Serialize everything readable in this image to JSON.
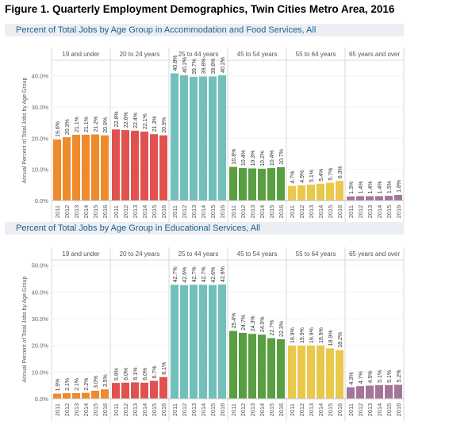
{
  "figure_title": "Figure 1. Quarterly Employment Demographics, Twin Cities Metro Area, 2016",
  "chart_data": [
    {
      "type": "bar",
      "title": "Percent of Total Jobs by Age Group in Accommodation and Food Services, All",
      "ylabel": "Annual Percent of Total Jobs by Age Group",
      "xlabel": "",
      "ylim": [
        0,
        45
      ],
      "yticks": [
        "0.0%",
        "10.0%",
        "20.0%",
        "30.0%",
        "40.0%"
      ],
      "ytick_values": [
        0,
        10,
        20,
        30,
        40
      ],
      "grid": true,
      "categories": [
        "2011",
        "2012",
        "2013",
        "2014",
        "2015",
        "2016"
      ],
      "series": [
        {
          "name": "19 and under",
          "color": "#ed8b2d",
          "values": [
            19.6,
            20.3,
            21.1,
            21.1,
            21.2,
            20.9
          ],
          "labels": [
            "19.6%",
            "20.3%",
            "21.1%",
            "21.1%",
            "21.2%",
            "20.9%"
          ]
        },
        {
          "name": "20 to 24 years",
          "color": "#e0514f",
          "values": [
            22.8,
            22.6,
            22.4,
            22.1,
            21.3,
            20.9
          ],
          "labels": [
            "22.8%",
            "22.6%",
            "22.4%",
            "22.1%",
            "21.3%",
            "20.9%"
          ]
        },
        {
          "name": "25 to 44 years",
          "color": "#72bfbc",
          "values": [
            40.8,
            40.2,
            39.7,
            39.8,
            39.8,
            40.2
          ],
          "labels": [
            "40.8%",
            "40.2%",
            "39.7%",
            "39.8%",
            "39.8%",
            "40.2%"
          ]
        },
        {
          "name": "45 to 54 years",
          "color": "#5a9e42",
          "values": [
            10.8,
            10.4,
            10.3,
            10.2,
            10.4,
            10.7
          ],
          "labels": [
            "10.8%",
            "10.4%",
            "10.3%",
            "10.2%",
            "10.4%",
            "10.7%"
          ]
        },
        {
          "name": "55 to 64 years",
          "color": "#e9c84b",
          "values": [
            4.7,
            4.9,
            5.1,
            5.4,
            5.7,
            6.3
          ],
          "labels": [
            "4.7%",
            "4.9%",
            "5.1%",
            "5.4%",
            "5.7%",
            "6.3%"
          ]
        },
        {
          "name": "65 years and over",
          "color": "#a37598",
          "values": [
            1.3,
            1.4,
            1.4,
            1.4,
            1.5,
            1.8
          ],
          "labels": [
            "1.3%",
            "1.4%",
            "1.4%",
            "1.4%",
            "1.5%",
            "1.8%"
          ]
        }
      ]
    },
    {
      "type": "bar",
      "title": "Percent of Total Jobs by Age Group in Educational Services, All",
      "ylabel": "Annual Percent of Total Jobs by Age Group",
      "xlabel": "",
      "ylim": [
        0,
        52
      ],
      "yticks": [
        "0.0%",
        "10.0%",
        "20.0%",
        "30.0%",
        "40.0%",
        "50.0%"
      ],
      "ytick_values": [
        0,
        10,
        20,
        30,
        40,
        50
      ],
      "grid": true,
      "categories": [
        "2011",
        "2012",
        "2013",
        "2014",
        "2015",
        "2016"
      ],
      "series": [
        {
          "name": "19 and under",
          "color": "#ed8b2d",
          "values": [
            1.9,
            2.1,
            2.1,
            2.2,
            3.0,
            3.5
          ],
          "labels": [
            "1.9%",
            "2.1%",
            "2.1%",
            "2.2%",
            "3.0%",
            "3.5%"
          ]
        },
        {
          "name": "20 to 24 years",
          "color": "#e0514f",
          "values": [
            5.9,
            6.0,
            6.1,
            6.0,
            6.7,
            8.1
          ],
          "labels": [
            "5.9%",
            "6.0%",
            "6.1%",
            "6.0%",
            "6.7%",
            "8.1%"
          ]
        },
        {
          "name": "25 to 44 years",
          "color": "#72bfbc",
          "values": [
            42.7,
            42.6,
            42.7,
            42.7,
            42.6,
            42.8
          ],
          "labels": [
            "42.7%",
            "42.6%",
            "42.7%",
            "42.7%",
            "42.6%",
            "42.8%"
          ]
        },
        {
          "name": "45 to 54 years",
          "color": "#5a9e42",
          "values": [
            25.4,
            24.7,
            24.3,
            24.0,
            22.7,
            22.3
          ],
          "labels": [
            "25.4%",
            "24.7%",
            "24.3%",
            "24.0%",
            "22.7%",
            "22.3%"
          ]
        },
        {
          "name": "55 to 64 years",
          "color": "#e9c84b",
          "values": [
            19.9,
            19.9,
            19.9,
            19.9,
            18.9,
            18.2
          ],
          "labels": [
            "19.9%",
            "19.9%",
            "19.9%",
            "19.9%",
            "18.9%",
            "18.2%"
          ]
        },
        {
          "name": "65 years and over",
          "color": "#a37598",
          "values": [
            4.3,
            4.7,
            4.9,
            5.1,
            5.1,
            5.2
          ],
          "labels": [
            "4.3%",
            "4.7%",
            "4.9%",
            "5.1%",
            "5.1%",
            "5.2%"
          ]
        }
      ]
    }
  ]
}
